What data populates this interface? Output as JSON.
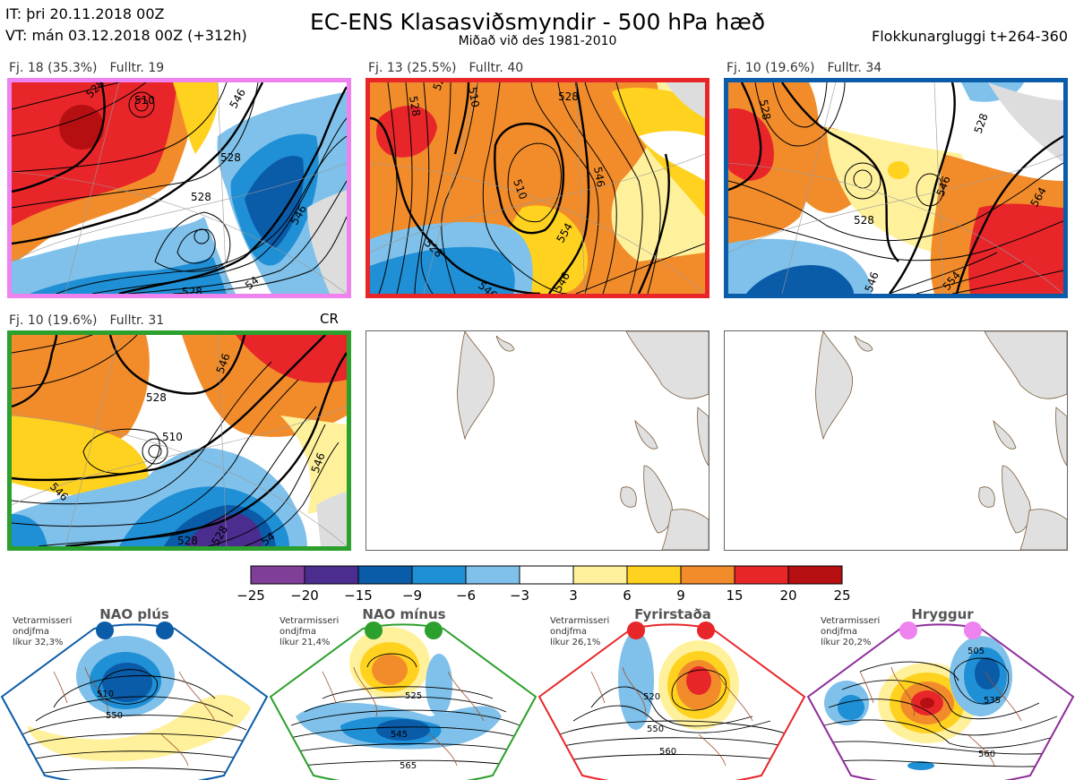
{
  "header": {
    "it_line": "IT: þri 20.11.2018 00Z",
    "vt_line": "VT: mán 03.12.2018 00Z  (+312h)",
    "title": "EC-ENS Klasasviðsmyndir - 500 hPa hæð",
    "subtitle": "Miðað við des 1981-2010",
    "window": "Flokkunargluggi t+264-360"
  },
  "clusters": [
    {
      "fj": "Fj. 18 (35.3%)",
      "fulltr": "Fulltr. 19",
      "frame_color": "#ee82ee",
      "contour_labels": [
        "528",
        "510",
        "546",
        "528",
        "528",
        "546",
        "528",
        "54"
      ]
    },
    {
      "fj": "Fj. 13 (25.5%)",
      "fulltr": "Fulltr. 40",
      "frame_color": "#e8262a",
      "contour_labels": [
        "528",
        "528",
        "510",
        "528",
        "546",
        "510",
        "528",
        "546",
        "546",
        "554"
      ]
    },
    {
      "fj": "Fj. 10 (19.6%)",
      "fulltr": "Fulltr. 34",
      "frame_color": "#0a5ba8",
      "contour_labels": [
        "528",
        "528",
        "528",
        "546",
        "564",
        "554",
        "546"
      ]
    },
    {
      "fj": "Fj. 10 (19.6%)",
      "fulltr": "Fulltr. 31",
      "frame_color": "#2ca02c",
      "contour_labels": [
        "528",
        "546",
        "510",
        "546",
        "528",
        "546",
        "528",
        "54"
      ],
      "tag": "CR"
    }
  ],
  "colorbar": {
    "ticks": [
      "−25",
      "−20",
      "−15",
      "−9",
      "−6",
      "−3",
      "3",
      "6",
      "9",
      "15",
      "20",
      "25"
    ],
    "colors": [
      "#7f3f98",
      "#4b2c8f",
      "#0a5ba8",
      "#1f8fd6",
      "#7fc1ea",
      "#ffffff",
      "#fff19c",
      "#ffd21f",
      "#f28c2b",
      "#e8262a",
      "#b50f12"
    ]
  },
  "regimes": [
    {
      "name": "NAO plús",
      "note": [
        "Vetrarmisseri",
        "ondjfma",
        "líkur 32,3%"
      ],
      "dot_color": "#0a5ba8",
      "frame_color": "#0a5ba8",
      "contour_labels": [
        "510",
        "550"
      ]
    },
    {
      "name": "NAO mínus",
      "note": [
        "Vetrarmisseri",
        "ondjfma",
        "líkur 21,4%"
      ],
      "dot_color": "#2ca02c",
      "frame_color": "#2ca02c",
      "contour_labels": [
        "525",
        "545",
        "565"
      ]
    },
    {
      "name": "Fyrirstaða",
      "note": [
        "Vetrarmisseri",
        "ondjfma",
        "líkur 26,1%"
      ],
      "dot_color": "#e8262a",
      "frame_color": "#e8262a",
      "contour_labels": [
        "520",
        "550",
        "560"
      ]
    },
    {
      "name": "Hryggur",
      "note": [
        "Vetrarmisseri",
        "ondjfma",
        "líkur 20,2%"
      ],
      "dot_color": "#ee82ee",
      "frame_color": "#8e2c9a",
      "contour_labels": [
        "505",
        "535",
        "560"
      ]
    }
  ]
}
